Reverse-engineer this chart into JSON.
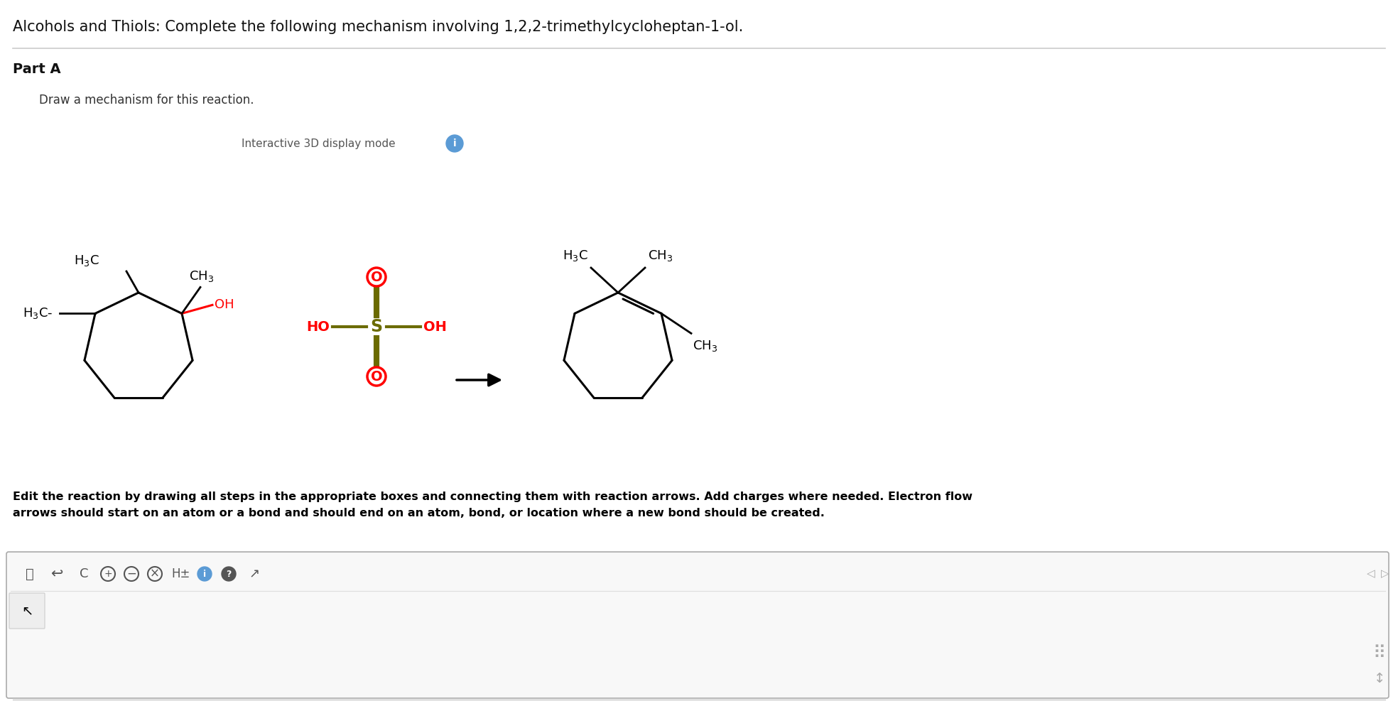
{
  "title": "Alcohols and Thiols: Complete the following mechanism involving 1,2,2-trimethylcycloheptan-1-ol.",
  "part_a_label": "Part A",
  "draw_mechanism_text": "Draw a mechanism for this reaction.",
  "interactive_mode_text": "Interactive 3D display mode",
  "edit_text": "Edit the reaction by drawing all steps in the appropriate boxes and connecting them with reaction arrows. Add charges where needed. Electron flow\narrows should start on an atom or a bond and should end on an atom, bond, or location where a new bond should be created.",
  "bg_color": "#ffffff",
  "separator_color": "#cccccc",
  "title_fontsize": 15,
  "part_a_fontsize": 14,
  "body_fontsize": 12,
  "small_fontsize": 11,
  "label_fontsize": 13,
  "sub_fontsize": 11
}
